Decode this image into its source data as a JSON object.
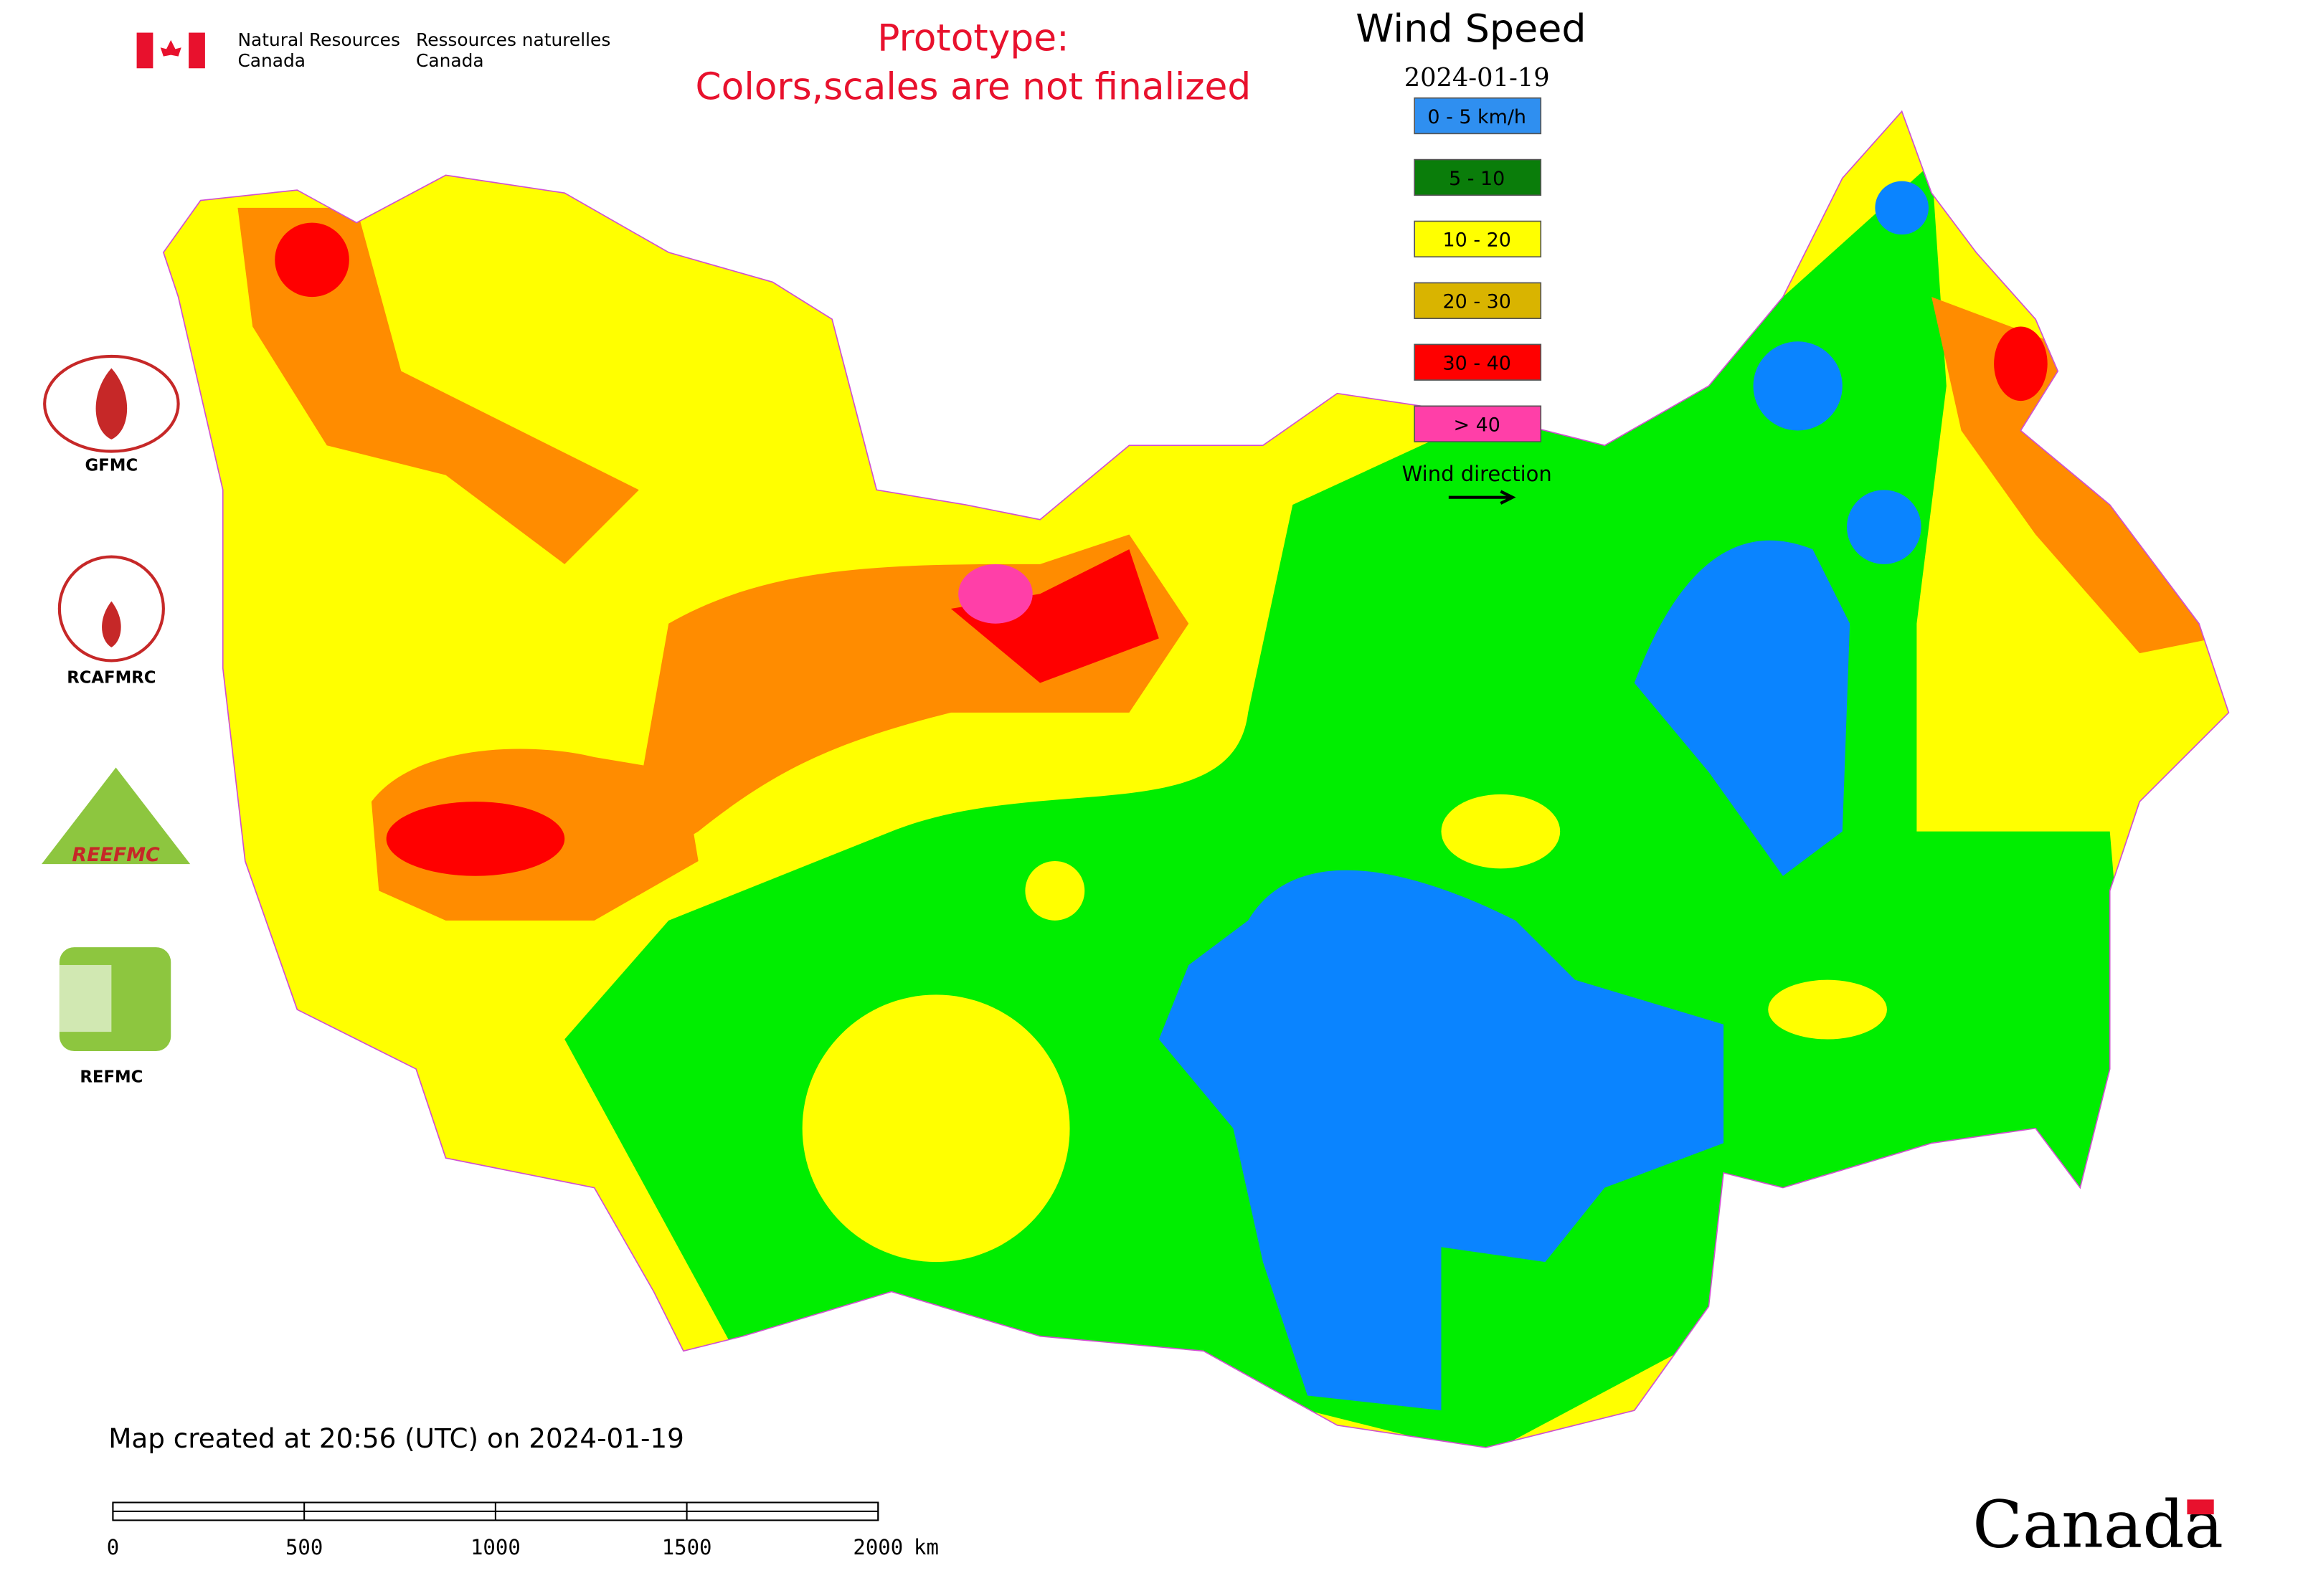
{
  "header": {
    "department_en": [
      "Natural Resources",
      "Canada"
    ],
    "department_fr": [
      "Ressources naturelles",
      "Canada"
    ],
    "notice": [
      "Prototype:",
      "Colors,scales are not finalized"
    ]
  },
  "map": {
    "title": "Wind Speed",
    "date": "2024-01-19",
    "legend": [
      {
        "label": "0 - 5 km/h",
        "color": "#2f8ff0"
      },
      {
        "label": "5 - 10",
        "color": "#0a7d0a"
      },
      {
        "label": "10 - 20",
        "color": "#ffff00"
      },
      {
        "label": "20 - 30",
        "color": "#d9b400"
      },
      {
        "label": "30 - 40",
        "color": "#ff0000"
      },
      {
        "label": "> 40",
        "color": "#ff3fa8"
      }
    ],
    "wind_direction": "Wind direction"
  },
  "logos": [
    "GFMC",
    "RCAFMRC",
    "REEFMC",
    "REFMC"
  ],
  "footer": {
    "created": "Map created at 20:56 (UTC) on 2024-01-19",
    "scale_labels": [
      "0",
      "500",
      "1000",
      "1500",
      "2000"
    ],
    "scale_unit": "km",
    "wordmark": "Canada"
  }
}
